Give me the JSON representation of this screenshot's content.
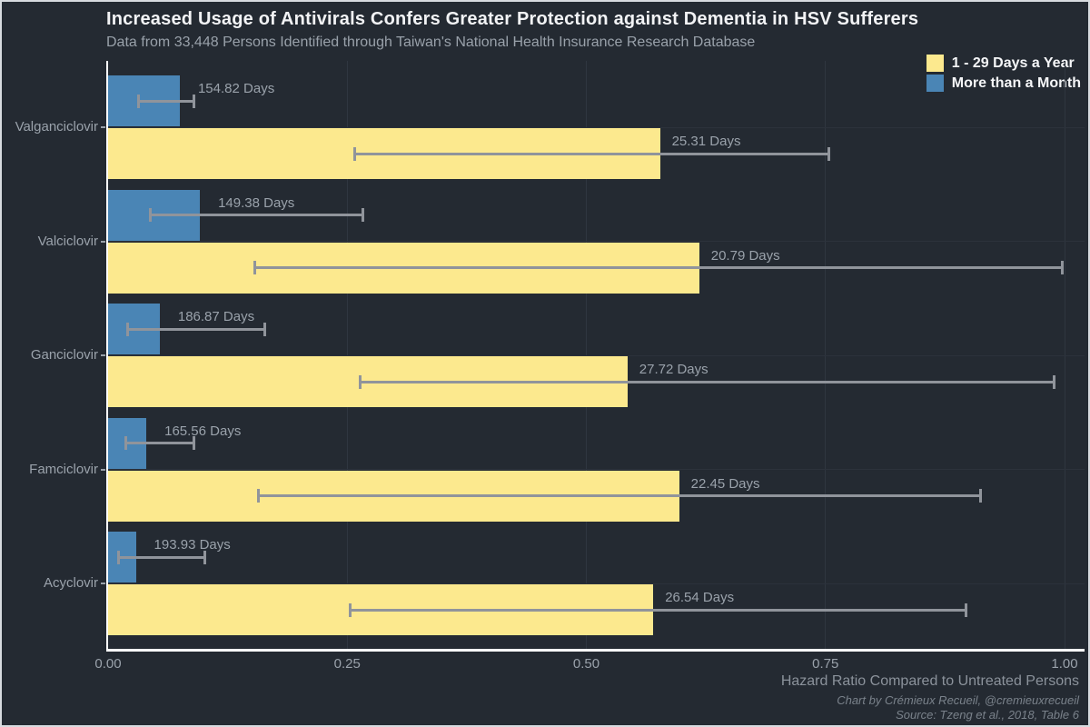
{
  "chart_data": {
    "type": "bar",
    "orientation": "horizontal",
    "title": "Increased Usage of Antivirals Confers Greater Protection against Dementia in HSV Sufferers",
    "subtitle": "Data from 33,448 Persons Identified through Taiwan's National Health Insurance Research Database",
    "xlabel": "Hazard Ratio Compared to Untreated Persons",
    "xlim": [
      0,
      1.0
    ],
    "xticks": [
      "0.00",
      "0.25",
      "0.50",
      "0.75",
      "1.00"
    ],
    "grid": "vertical-major and horizontal-category, dark theme",
    "legend_position": "top-right",
    "legend": [
      {
        "name": "1 - 29 Days a Year",
        "color": "#FCE98E"
      },
      {
        "name": "More than a Month",
        "color": "#4A85B5"
      }
    ],
    "categories": [
      "Valganciclovir",
      "Valciclovir",
      "Ganciclovir",
      "Famciclovir",
      "Acyclovir"
    ],
    "groups": [
      {
        "category": "Valganciclovir",
        "bars": [
          {
            "series": "More than a Month",
            "hazard_ratio": 0.075,
            "ci_low": 0.031,
            "ci_high": 0.09,
            "label": "154.82 Days"
          },
          {
            "series": "1 - 29 Days a Year",
            "hazard_ratio": 0.577,
            "ci_low": 0.257,
            "ci_high": 0.754,
            "label": "25.31 Days"
          }
        ]
      },
      {
        "category": "Valciclovir",
        "bars": [
          {
            "series": "More than a Month",
            "hazard_ratio": 0.096,
            "ci_low": 0.044,
            "ci_high": 0.267,
            "label": "149.38 Days"
          },
          {
            "series": "1 - 29 Days a Year",
            "hazard_ratio": 0.618,
            "ci_low": 0.153,
            "ci_high": 0.998,
            "label": "20.79 Days"
          }
        ]
      },
      {
        "category": "Ganciclovir",
        "bars": [
          {
            "series": "More than a Month",
            "hazard_ratio": 0.054,
            "ci_low": 0.02,
            "ci_high": 0.164,
            "label": "186.87 Days"
          },
          {
            "series": "1 - 29 Days a Year",
            "hazard_ratio": 0.543,
            "ci_low": 0.263,
            "ci_high": 0.99,
            "label": "27.72 Days"
          }
        ]
      },
      {
        "category": "Famciclovir",
        "bars": [
          {
            "series": "More than a Month",
            "hazard_ratio": 0.04,
            "ci_low": 0.018,
            "ci_high": 0.09,
            "label": "165.56 Days"
          },
          {
            "series": "1 - 29 Days a Year",
            "hazard_ratio": 0.597,
            "ci_low": 0.157,
            "ci_high": 0.913,
            "label": "22.45 Days"
          }
        ]
      },
      {
        "category": "Acyclovir",
        "bars": [
          {
            "series": "More than a Month",
            "hazard_ratio": 0.029,
            "ci_low": 0.01,
            "ci_high": 0.102,
            "label": "193.93 Days"
          },
          {
            "series": "1 - 29 Days a Year",
            "hazard_ratio": 0.57,
            "ci_low": 0.253,
            "ci_high": 0.897,
            "label": "26.54 Days"
          }
        ]
      }
    ],
    "captions": [
      "Chart by Crémieux Recueil, @cremieuxrecueil",
      "Source: Tzeng et al., 2018, Table 6"
    ]
  },
  "colors": {
    "background": "#242a32",
    "bar_yellow": "#FCE98E",
    "bar_blue": "#4A85B5",
    "error_bar": "#90949b",
    "axis": "#ffffff",
    "text_primary": "#f2f3f5",
    "text_secondary": "#9aa2ab",
    "border": "#d7dbdf"
  }
}
